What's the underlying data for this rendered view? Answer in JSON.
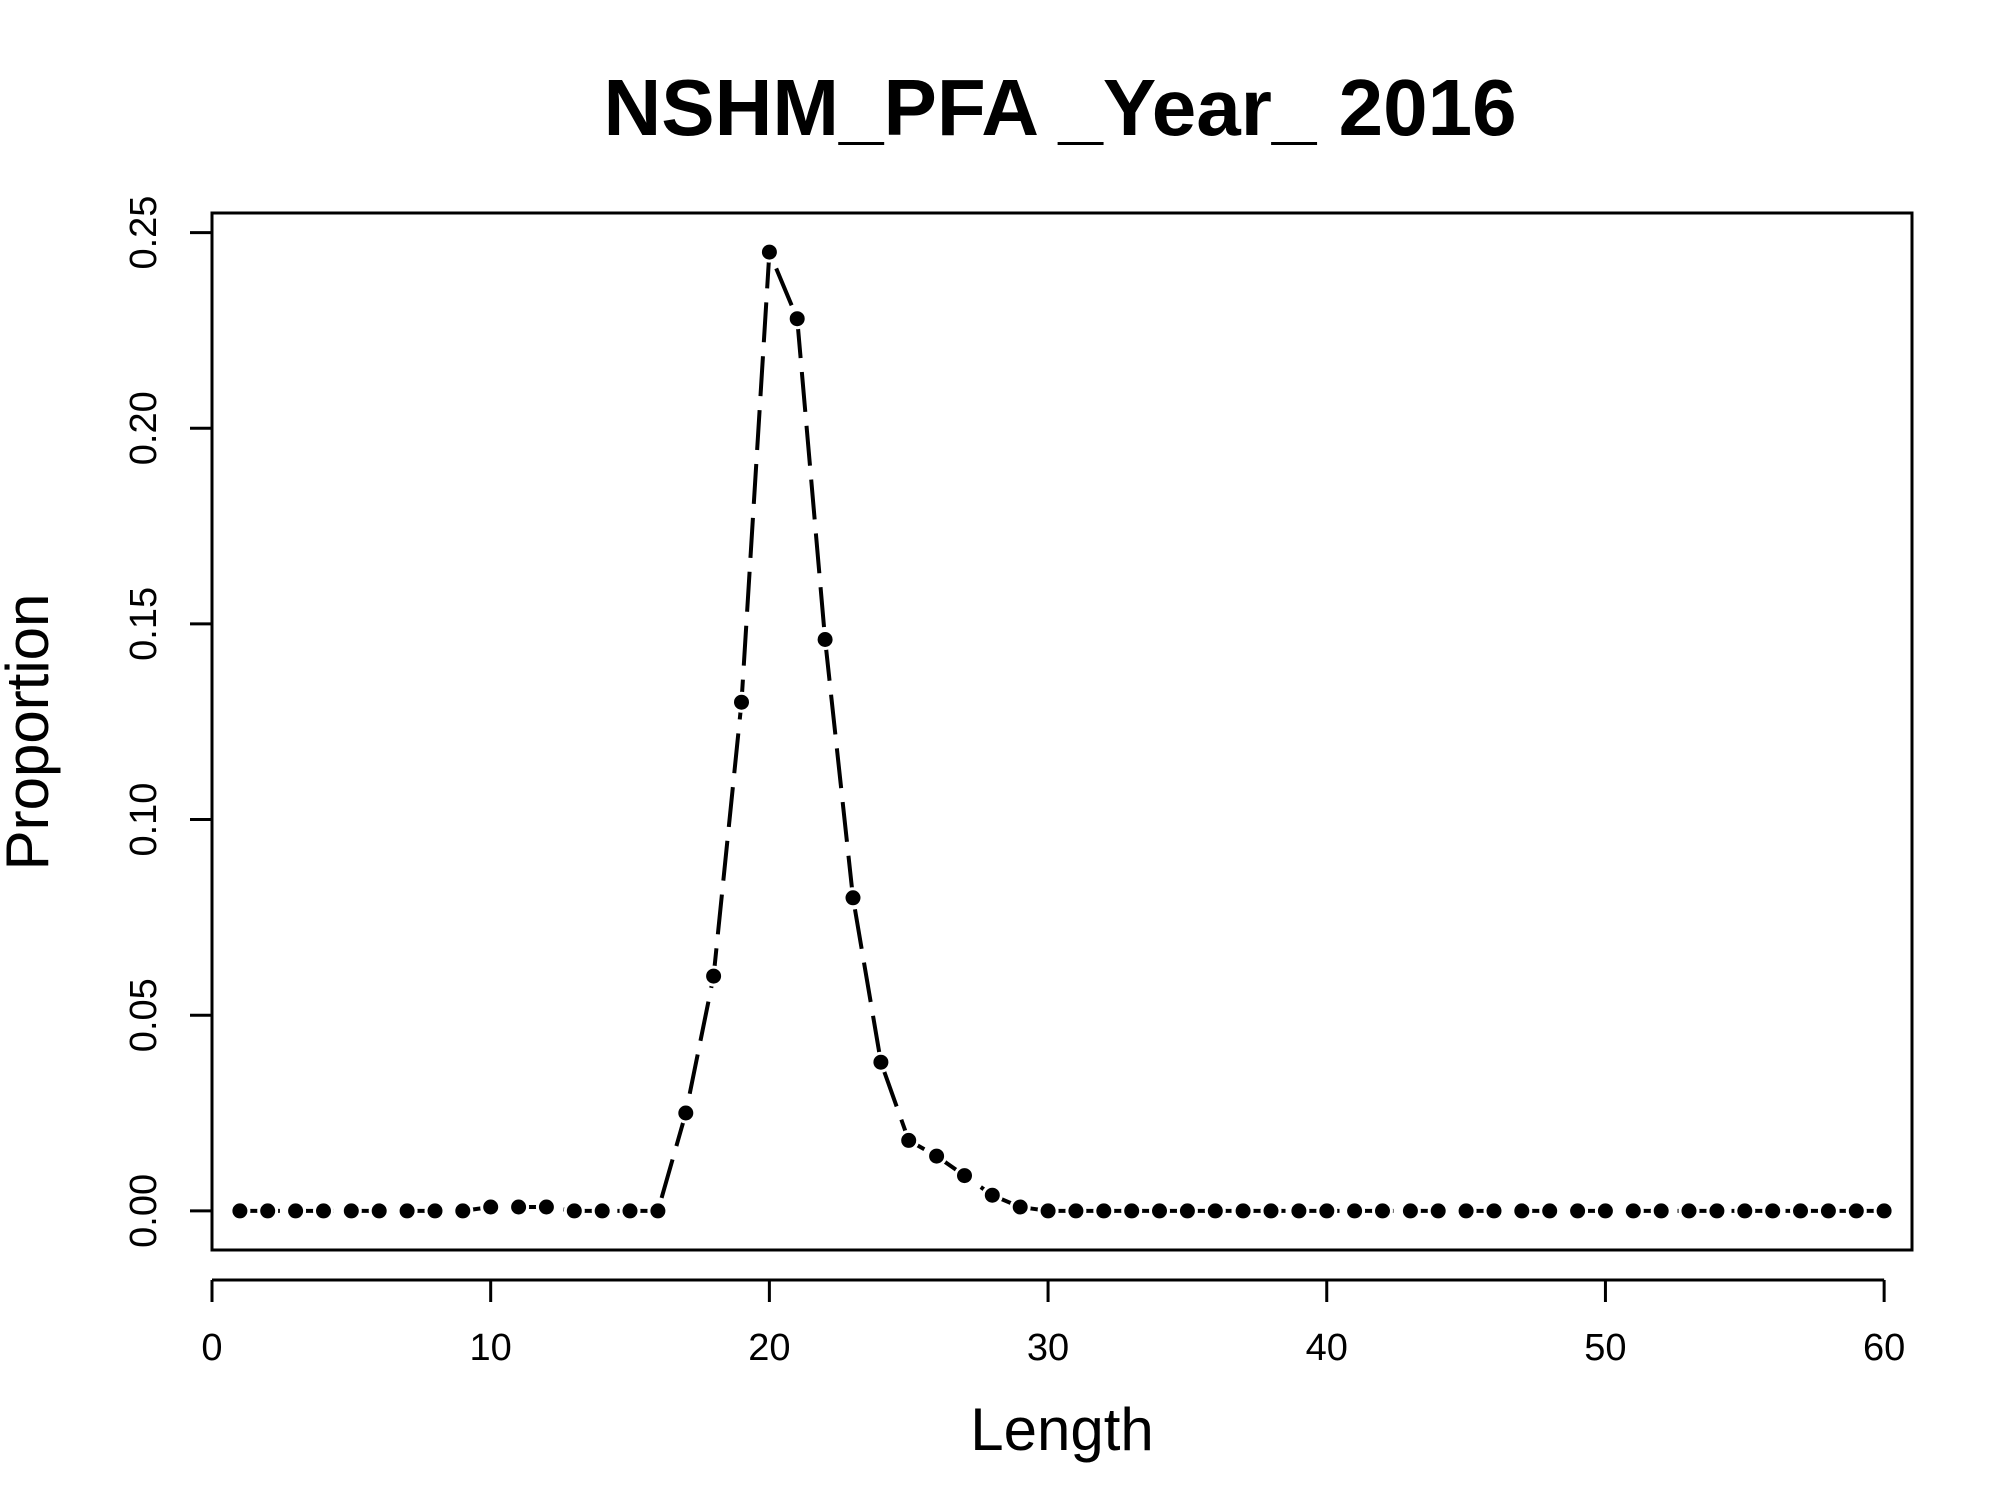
{
  "chart_data": {
    "type": "line",
    "title": "NSHM_PFA _Year_ 2016",
    "xlabel": "Length",
    "ylabel": "Proportion",
    "xlim": [
      0,
      61
    ],
    "ylim": [
      -0.01,
      0.255
    ],
    "xticks": [
      0,
      10,
      20,
      30,
      40,
      50,
      60
    ],
    "xtick_labels": [
      "0",
      "10",
      "20",
      "30",
      "40",
      "50",
      "60"
    ],
    "yticks": [
      0,
      0.05,
      0.1,
      0.15,
      0.2,
      0.25
    ],
    "ytick_labels": [
      "0.00",
      "0.05",
      "0.10",
      "0.15",
      "0.20",
      "0.25"
    ],
    "grid": false,
    "legend": "none",
    "line_style": "dashed",
    "line_color": "#000000",
    "point_color": "#000000",
    "series": [
      {
        "x": [
          1,
          2,
          3,
          4,
          5,
          6,
          7,
          8,
          9,
          10,
          11,
          12,
          13,
          14,
          15,
          16,
          17,
          18,
          19,
          20,
          21,
          22,
          23,
          24,
          25,
          26,
          27,
          28,
          29,
          30,
          31,
          32,
          33,
          34,
          35,
          36,
          37,
          38,
          39,
          40,
          41,
          42,
          43,
          44,
          45,
          46,
          47,
          48,
          49,
          50,
          51,
          52,
          53,
          54,
          55,
          56,
          57,
          58,
          59,
          60
        ],
        "values": [
          0,
          0,
          0,
          0,
          0,
          0,
          0,
          0,
          0,
          0.001,
          0.001,
          0.001,
          0,
          0,
          0,
          0,
          0.025,
          0.06,
          0.13,
          0.245,
          0.228,
          0.146,
          0.08,
          0.038,
          0.018,
          0.014,
          0.009,
          0.004,
          0.001,
          0,
          0,
          0,
          0,
          0,
          0,
          0,
          0,
          0,
          0,
          0,
          0,
          0,
          0,
          0,
          0,
          0,
          0,
          0,
          0,
          0,
          0,
          0,
          0,
          0,
          0,
          0,
          0,
          0,
          0,
          0
        ]
      }
    ]
  }
}
